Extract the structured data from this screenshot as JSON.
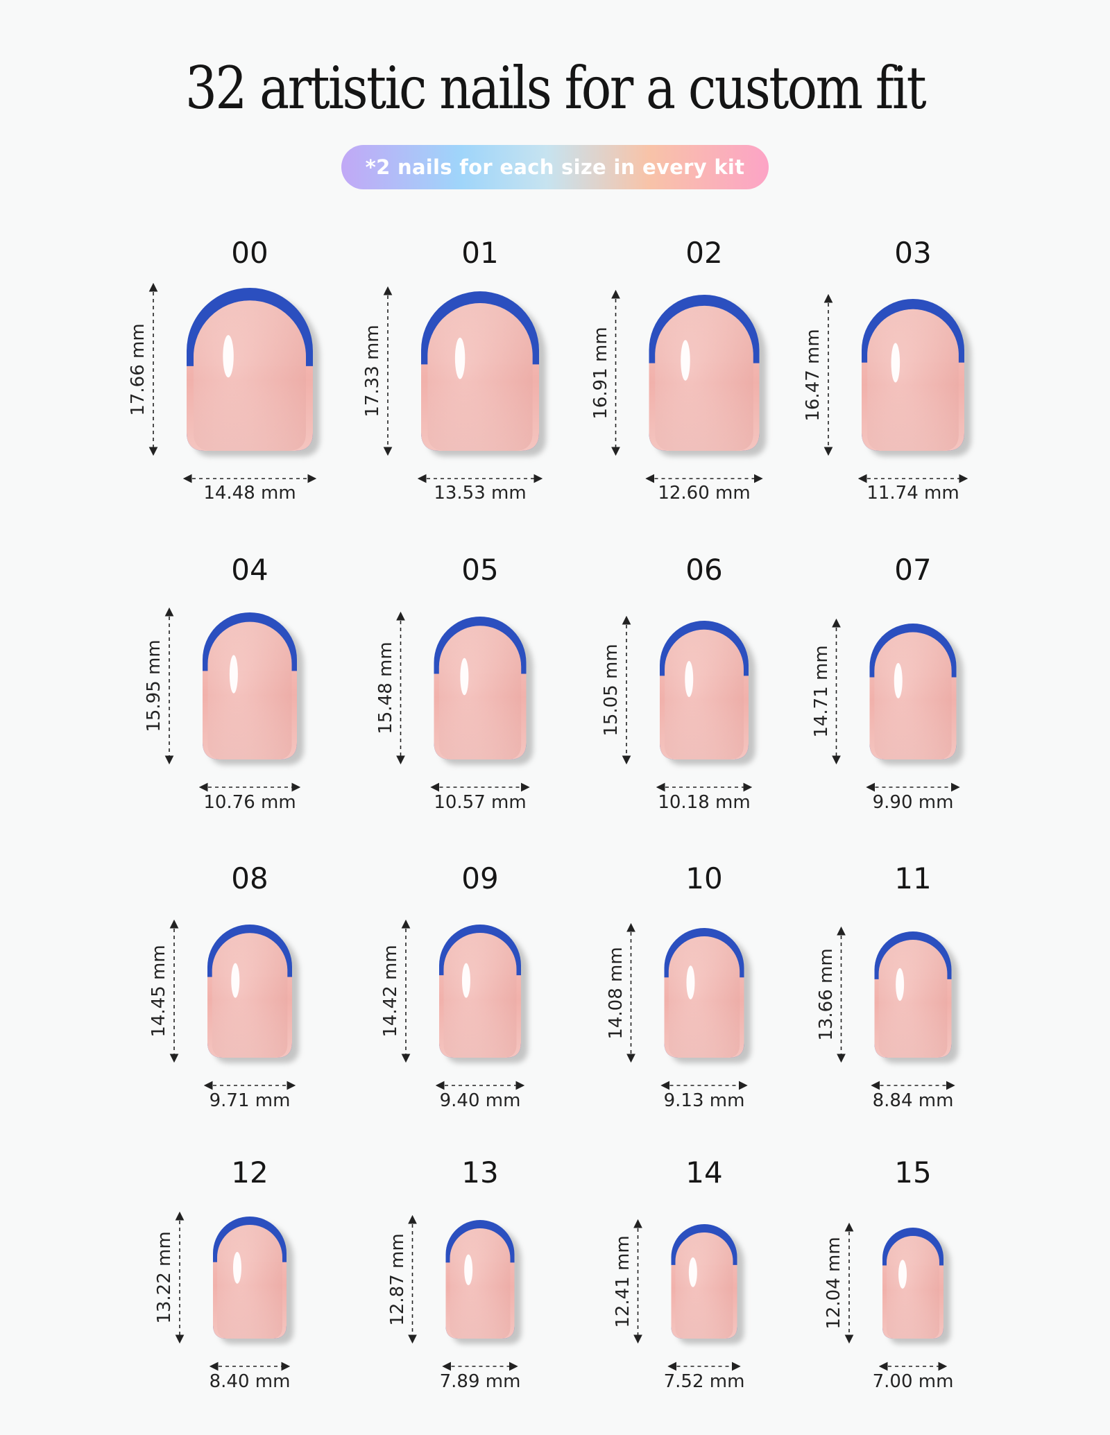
{
  "header": {
    "title": "32 artistic nails for a custom fit",
    "note": "*2 nails for each size in every kit"
  },
  "colors": {
    "background": "#f8f9f9",
    "nail_pink": "#f0b3ad",
    "french_tip_blue": "#2b4fbf",
    "text": "#1c1c1c"
  },
  "sizes": [
    {
      "label": "00",
      "width": "14.48 mm",
      "height": "17.66 mm"
    },
    {
      "label": "01",
      "width": "13.53 mm",
      "height": "17.33 mm"
    },
    {
      "label": "02",
      "width": "12.60 mm",
      "height": "16.91 mm"
    },
    {
      "label": "03",
      "width": "11.74 mm",
      "height": "16.47 mm"
    },
    {
      "label": "04",
      "width": "10.76 mm",
      "height": "15.95 mm"
    },
    {
      "label": "05",
      "width": "10.57 mm",
      "height": "15.48 mm"
    },
    {
      "label": "06",
      "width": "10.18 mm",
      "height": "15.05 mm"
    },
    {
      "label": "07",
      "width": "9.90 mm",
      "height": "14.71 mm"
    },
    {
      "label": "08",
      "width": "9.71 mm",
      "height": "14.45 mm"
    },
    {
      "label": "09",
      "width": "9.40 mm",
      "height": "14.42 mm"
    },
    {
      "label": "10",
      "width": "9.13 mm",
      "height": "14.08 mm"
    },
    {
      "label": "11",
      "width": "8.84 mm",
      "height": "13.66 mm"
    },
    {
      "label": "12",
      "width": "8.40 mm",
      "height": "13.22 mm"
    },
    {
      "label": "13",
      "width": "7.89 mm",
      "height": "12.87 mm"
    },
    {
      "label": "14",
      "width": "7.52 mm",
      "height": "12.41 mm"
    },
    {
      "label": "15",
      "width": "7.00 mm",
      "height": "12.04 mm"
    }
  ]
}
